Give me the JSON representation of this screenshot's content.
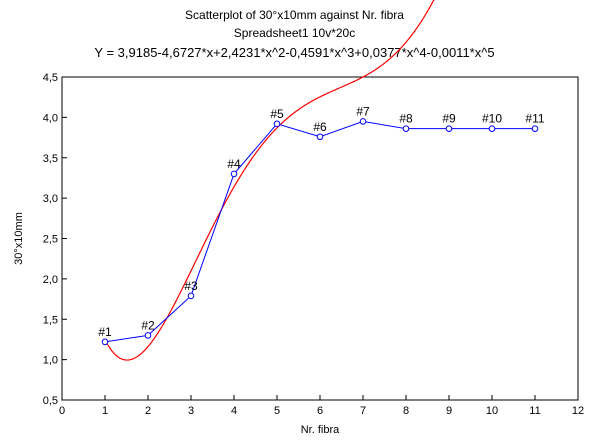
{
  "chart_data": {
    "type": "scatter",
    "title": "Scatterplot of 30°x10mm against Nr. fibra",
    "subtitle": "Spreadsheet1 10v*20c",
    "equation": "Y = 3,9185-4,6727*x+2,4231*x^2-0,4591*x^3+0,0377*x^4-0,0011*x^5",
    "xlabel": "Nr. fibra",
    "ylabel": "30°x10mm",
    "xlim": [
      0,
      12
    ],
    "ylim": [
      0.5,
      4.5
    ],
    "x_ticks": [
      "0",
      "1",
      "2",
      "3",
      "4",
      "5",
      "6",
      "7",
      "8",
      "9",
      "10",
      "11",
      "12"
    ],
    "y_ticks": [
      "0,5",
      "1,0",
      "1,5",
      "2,0",
      "2,5",
      "3,0",
      "3,5",
      "4,0",
      "4,5"
    ],
    "grid": false,
    "series": [
      {
        "x": [
          1,
          2,
          3,
          4,
          5,
          6,
          7,
          8,
          9,
          10,
          11
        ],
        "y": [
          1.22,
          1.3,
          1.79,
          3.3,
          3.92,
          3.76,
          3.95,
          3.86,
          3.86,
          3.86,
          3.86
        ],
        "labels": [
          "#1",
          "#2",
          "#3",
          "#4",
          "#5",
          "#6",
          "#7",
          "#8",
          "#9",
          "#10",
          "#11"
        ],
        "color": "#0000ff"
      }
    ],
    "fit": {
      "coefficients": [
        3.9185,
        -4.6727,
        2.4231,
        -0.4591,
        0.0377,
        -0.0011
      ],
      "color": "#ff0000"
    }
  }
}
